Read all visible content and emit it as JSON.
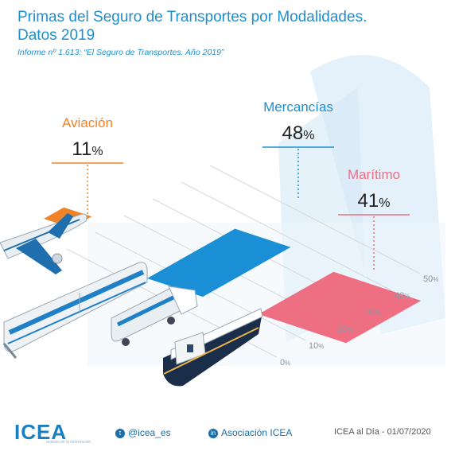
{
  "title_line1": "Primas del Seguro de Transportes por Modalidades.",
  "title_line2": "Datos 2019",
  "subtitle": "Informe nº 1.613: “El Seguro de Transportes. Año 2019”",
  "chart_data": {
    "type": "bar",
    "title": "Primas del Seguro de Transportes por Modalidades. Datos 2019",
    "categories": [
      "Aviación",
      "Mercancías",
      "Marítimo"
    ],
    "values": [
      11,
      48,
      41
    ],
    "value_suffix": "%",
    "colors": [
      "#f08327",
      "#1a8fd6",
      "#ef6f82"
    ],
    "ylim": [
      0,
      50
    ],
    "ticks": [
      0,
      10,
      20,
      30,
      40,
      50
    ],
    "tick_suffix": "%",
    "grid": true,
    "legend": "none"
  },
  "footer": {
    "brand": "ICEA",
    "brand_tagline": "análisis de la información",
    "twitter": "@icea_es",
    "linkedin": "Asociación ICEA",
    "date": "ICEA al Día - 01/07/2020"
  },
  "icons": [
    "airplane-icon",
    "train-icon",
    "tanker-truck-icon",
    "ship-icon",
    "twitter-icon",
    "linkedin-icon"
  ]
}
